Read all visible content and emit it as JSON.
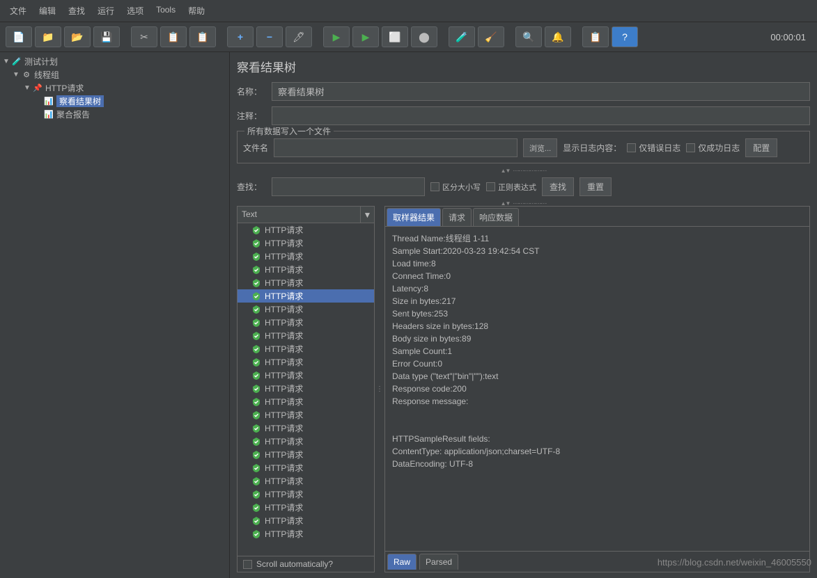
{
  "colors": {
    "bg": "#3c3f41",
    "panel": "#45494a",
    "border": "#646464",
    "text": "#bbbbbb",
    "selection": "#4b6eaf",
    "selection_text": "#ffffff"
  },
  "menu": {
    "items": [
      "文件",
      "编辑",
      "查找",
      "运行",
      "选项",
      "Tools",
      "帮助"
    ]
  },
  "toolbar": {
    "timer": "00:00:01",
    "icons": [
      "📄",
      "📁",
      "📂",
      "💾",
      "",
      "✂",
      "📋",
      "📋",
      "",
      "➕",
      "➖",
      "🧹",
      "",
      "▶",
      "▶",
      "⏹",
      "⬤",
      "",
      "🧪",
      "🧹",
      "",
      "🔍",
      "🧹",
      "",
      "📋",
      "❓"
    ]
  },
  "tree": {
    "nodes": [
      {
        "label": "测试计划",
        "indent": 0,
        "arrow": "▼",
        "icon": "🧪",
        "selected": false
      },
      {
        "label": "线程组",
        "indent": 1,
        "arrow": "▼",
        "icon": "⚙",
        "selected": false
      },
      {
        "label": "HTTP请求",
        "indent": 2,
        "arrow": "▼",
        "icon": "📌",
        "selected": false
      },
      {
        "label": "察看结果树",
        "indent": 3,
        "arrow": "",
        "icon": "📊",
        "selected": true
      },
      {
        "label": "聚合报告",
        "indent": 3,
        "arrow": "",
        "icon": "📊",
        "selected": false
      }
    ]
  },
  "panel": {
    "title": "察看结果树",
    "name_label": "名称：",
    "name_value": "察看结果树",
    "comment_label": "注释：",
    "comment_value": "",
    "file_group_title": "所有数据写入一个文件",
    "filename_label": "文件名",
    "filename_value": "",
    "browse_btn": "浏览...",
    "log_content_label": "显示日志内容：",
    "only_error_label": "仅错误日志",
    "only_success_label": "仅成功日志",
    "config_btn": "配置",
    "search_label": "查找：",
    "search_value": "",
    "case_sensitive_label": "区分大小写",
    "regex_label": "正则表达式",
    "search_btn": "查找",
    "reset_btn": "重置"
  },
  "results": {
    "renderer_label": "Text",
    "item_label": "HTTP请求",
    "item_count": 24,
    "selected_index": 5,
    "scroll_auto_label": "Scroll automatically?",
    "tabs": [
      "取样器结果",
      "请求",
      "响应数据"
    ],
    "active_tab": 0,
    "bottom_tabs": [
      "Raw",
      "Parsed"
    ],
    "active_bottom_tab": 0,
    "detail_lines": [
      "Thread Name:线程组 1-11",
      "Sample Start:2020-03-23 19:42:54 CST",
      "Load time:8",
      "Connect Time:0",
      "Latency:8",
      "Size in bytes:217",
      "Sent bytes:253",
      "Headers size in bytes:128",
      "Body size in bytes:89",
      "Sample Count:1",
      "Error Count:0",
      "Data type (\"text\"|\"bin\"|\"\"):text",
      "Response code:200",
      "Response message:",
      "",
      "",
      "HTTPSampleResult fields:",
      "ContentType: application/json;charset=UTF-8",
      "DataEncoding: UTF-8"
    ]
  },
  "watermark": "https://blog.csdn.net/weixin_46005550"
}
